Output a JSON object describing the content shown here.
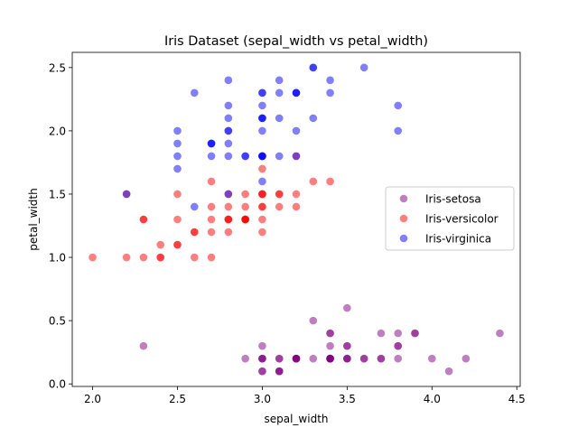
{
  "chart_data": {
    "type": "scatter",
    "title": "Iris Dataset (sepal_width vs  petal_width)",
    "xlabel": "sepal_width",
    "ylabel": "petal_width",
    "xlim": [
      1.88,
      4.52
    ],
    "ylim": [
      -0.02,
      2.62
    ],
    "xticks": [
      2.0,
      2.5,
      3.0,
      3.5,
      4.0,
      4.5
    ],
    "xtick_labels": [
      "2.0",
      "2.5",
      "3.0",
      "3.5",
      "4.0",
      "4.5"
    ],
    "yticks": [
      0.0,
      0.5,
      1.0,
      1.5,
      2.0,
      2.5
    ],
    "ytick_labels": [
      "0.0",
      "0.5",
      "1.0",
      "1.5",
      "2.0",
      "2.5"
    ],
    "grid": false,
    "legend_position": "right",
    "point_alpha": 0.5,
    "series": [
      {
        "name": "Iris-setosa",
        "color": "#800080",
        "points": [
          [
            3.5,
            0.2
          ],
          [
            3.0,
            0.2
          ],
          [
            3.2,
            0.2
          ],
          [
            3.1,
            0.2
          ],
          [
            3.6,
            0.2
          ],
          [
            3.9,
            0.4
          ],
          [
            3.4,
            0.3
          ],
          [
            3.4,
            0.2
          ],
          [
            2.9,
            0.2
          ],
          [
            3.1,
            0.1
          ],
          [
            3.7,
            0.2
          ],
          [
            3.4,
            0.2
          ],
          [
            3.0,
            0.1
          ],
          [
            3.0,
            0.1
          ],
          [
            4.0,
            0.2
          ],
          [
            4.4,
            0.4
          ],
          [
            3.9,
            0.4
          ],
          [
            3.5,
            0.3
          ],
          [
            3.8,
            0.3
          ],
          [
            3.8,
            0.3
          ],
          [
            3.4,
            0.2
          ],
          [
            3.7,
            0.4
          ],
          [
            3.6,
            0.2
          ],
          [
            3.3,
            0.5
          ],
          [
            3.4,
            0.2
          ],
          [
            3.0,
            0.2
          ],
          [
            3.4,
            0.4
          ],
          [
            3.5,
            0.2
          ],
          [
            3.4,
            0.2
          ],
          [
            3.2,
            0.2
          ],
          [
            3.1,
            0.2
          ],
          [
            3.4,
            0.4
          ],
          [
            4.1,
            0.1
          ],
          [
            4.2,
            0.2
          ],
          [
            3.1,
            0.1
          ],
          [
            3.2,
            0.2
          ],
          [
            3.5,
            0.2
          ],
          [
            3.1,
            0.1
          ],
          [
            3.0,
            0.2
          ],
          [
            3.4,
            0.2
          ],
          [
            3.5,
            0.3
          ],
          [
            2.3,
            0.3
          ],
          [
            3.2,
            0.2
          ],
          [
            3.5,
            0.6
          ],
          [
            3.8,
            0.4
          ],
          [
            3.0,
            0.3
          ],
          [
            3.8,
            0.2
          ],
          [
            3.2,
            0.2
          ],
          [
            3.7,
            0.2
          ],
          [
            3.3,
            0.2
          ]
        ]
      },
      {
        "name": "Iris-versicolor",
        "color": "#ff0000",
        "points": [
          [
            3.2,
            1.4
          ],
          [
            3.2,
            1.5
          ],
          [
            3.1,
            1.5
          ],
          [
            2.3,
            1.3
          ],
          [
            2.8,
            1.5
          ],
          [
            2.8,
            1.3
          ],
          [
            3.3,
            1.6
          ],
          [
            2.4,
            1.0
          ],
          [
            2.9,
            1.3
          ],
          [
            2.7,
            1.4
          ],
          [
            2.0,
            1.0
          ],
          [
            3.0,
            1.5
          ],
          [
            2.2,
            1.0
          ],
          [
            2.9,
            1.4
          ],
          [
            2.9,
            1.3
          ],
          [
            3.1,
            1.4
          ],
          [
            3.0,
            1.5
          ],
          [
            2.7,
            1.0
          ],
          [
            2.2,
            1.5
          ],
          [
            2.5,
            1.1
          ],
          [
            3.2,
            1.8
          ],
          [
            2.8,
            1.3
          ],
          [
            2.5,
            1.5
          ],
          [
            2.8,
            1.2
          ],
          [
            2.9,
            1.3
          ],
          [
            3.0,
            1.4
          ],
          [
            2.8,
            1.4
          ],
          [
            3.0,
            1.7
          ],
          [
            2.9,
            1.5
          ],
          [
            2.6,
            1.0
          ],
          [
            2.4,
            1.1
          ],
          [
            2.4,
            1.0
          ],
          [
            2.7,
            1.2
          ],
          [
            2.7,
            1.6
          ],
          [
            3.0,
            1.5
          ],
          [
            3.4,
            1.6
          ],
          [
            3.1,
            1.5
          ],
          [
            2.3,
            1.3
          ],
          [
            3.0,
            1.3
          ],
          [
            2.5,
            1.3
          ],
          [
            2.6,
            1.2
          ],
          [
            3.0,
            1.4
          ],
          [
            2.6,
            1.2
          ],
          [
            2.3,
            1.0
          ],
          [
            2.7,
            1.3
          ],
          [
            3.0,
            1.2
          ],
          [
            2.9,
            1.3
          ],
          [
            2.9,
            1.3
          ],
          [
            2.5,
            1.1
          ],
          [
            2.8,
            1.3
          ]
        ]
      },
      {
        "name": "Iris-virginica",
        "color": "#0000ff",
        "points": [
          [
            3.3,
            2.5
          ],
          [
            2.7,
            1.9
          ],
          [
            3.0,
            2.1
          ],
          [
            2.9,
            1.8
          ],
          [
            3.0,
            2.2
          ],
          [
            3.0,
            2.1
          ],
          [
            2.5,
            1.7
          ],
          [
            2.9,
            1.8
          ],
          [
            2.5,
            1.8
          ],
          [
            3.6,
            2.5
          ],
          [
            3.2,
            2.0
          ],
          [
            2.7,
            1.9
          ],
          [
            3.0,
            2.1
          ],
          [
            2.5,
            2.0
          ],
          [
            2.8,
            2.4
          ],
          [
            3.2,
            2.3
          ],
          [
            3.0,
            1.8
          ],
          [
            3.8,
            2.2
          ],
          [
            2.6,
            2.3
          ],
          [
            2.2,
            1.5
          ],
          [
            3.2,
            2.3
          ],
          [
            2.8,
            2.0
          ],
          [
            2.8,
            2.0
          ],
          [
            2.7,
            1.8
          ],
          [
            3.3,
            2.1
          ],
          [
            3.2,
            1.8
          ],
          [
            2.8,
            1.8
          ],
          [
            3.0,
            1.8
          ],
          [
            2.8,
            2.1
          ],
          [
            3.0,
            1.6
          ],
          [
            2.8,
            1.9
          ],
          [
            3.8,
            2.0
          ],
          [
            2.8,
            2.2
          ],
          [
            2.8,
            1.5
          ],
          [
            2.6,
            1.4
          ],
          [
            3.0,
            2.3
          ],
          [
            3.4,
            2.4
          ],
          [
            3.1,
            1.8
          ],
          [
            3.0,
            1.8
          ],
          [
            3.1,
            2.1
          ],
          [
            3.1,
            2.4
          ],
          [
            3.1,
            2.3
          ],
          [
            2.7,
            1.9
          ],
          [
            3.2,
            2.3
          ],
          [
            3.3,
            2.5
          ],
          [
            3.0,
            2.3
          ],
          [
            2.5,
            1.9
          ],
          [
            3.0,
            2.0
          ],
          [
            3.4,
            2.3
          ],
          [
            3.0,
            1.8
          ]
        ]
      }
    ]
  }
}
